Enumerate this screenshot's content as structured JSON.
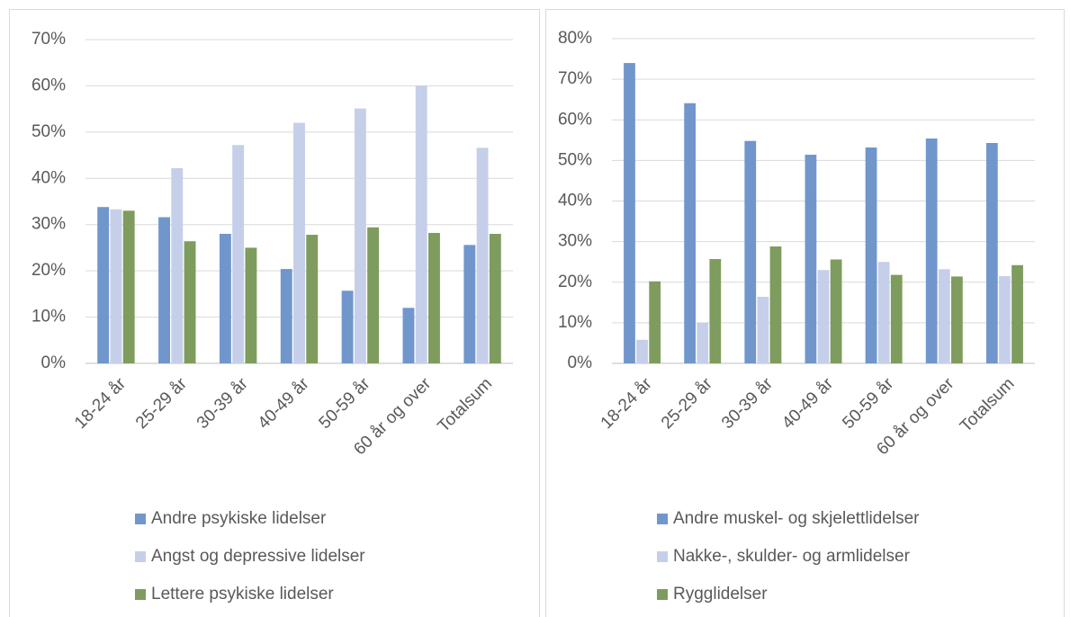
{
  "chart_data": [
    {
      "type": "bar",
      "categories": [
        "18-24 år",
        "25-29 år",
        "30-39 år",
        "40-49 år",
        "50-59 år",
        "60 år og over",
        "Totalsum"
      ],
      "series": [
        {
          "name": "Andre psykiske lidelser",
          "color": "#7096cc",
          "values": [
            33.8,
            31.6,
            28.0,
            20.4,
            15.7,
            12.0,
            25.6
          ]
        },
        {
          "name": "Angst og depressive lidelser",
          "color": "#c5cfe9",
          "values": [
            33.3,
            42.2,
            47.2,
            52.0,
            55.1,
            60.0,
            46.6
          ]
        },
        {
          "name": "Lettere psykiske lidelser",
          "color": "#7e9c5d",
          "values": [
            33.0,
            26.4,
            25.0,
            27.8,
            29.4,
            28.2,
            28.0
          ]
        }
      ],
      "ylim": [
        0,
        70
      ],
      "yticks": [
        {
          "value": 0,
          "label": "0%"
        },
        {
          "value": 10,
          "label": "10%"
        },
        {
          "value": 20,
          "label": "20%"
        },
        {
          "value": 30,
          "label": "30%"
        },
        {
          "value": 40,
          "label": "40%"
        },
        {
          "value": 50,
          "label": "50%"
        },
        {
          "value": 60,
          "label": "60%"
        },
        {
          "value": 70,
          "label": "70%"
        }
      ],
      "grid": true,
      "legend": "bottom"
    },
    {
      "type": "bar",
      "categories": [
        "18-24 år",
        "25-29 år",
        "30-39 år",
        "40-49 år",
        "50-59 år",
        "60 år og over",
        "Totalsum"
      ],
      "series": [
        {
          "name": "Andre muskel- og skjelettlidelser",
          "color": "#7096cc",
          "values": [
            74.0,
            64.1,
            54.8,
            51.4,
            53.2,
            55.4,
            54.3
          ]
        },
        {
          "name": "Nakke-, skulder- og armlidelser",
          "color": "#c5cfe9",
          "values": [
            5.8,
            10.0,
            16.4,
            23.0,
            25.0,
            23.2,
            21.5
          ]
        },
        {
          "name": "Rygglidelser",
          "color": "#7e9c5d",
          "values": [
            20.2,
            25.7,
            28.8,
            25.6,
            21.8,
            21.4,
            24.2
          ]
        }
      ],
      "ylim": [
        0,
        80
      ],
      "yticks": [
        {
          "value": 0,
          "label": "0%"
        },
        {
          "value": 10,
          "label": "10%"
        },
        {
          "value": 20,
          "label": "20%"
        },
        {
          "value": 30,
          "label": "30%"
        },
        {
          "value": 40,
          "label": "40%"
        },
        {
          "value": 50,
          "label": "50%"
        },
        {
          "value": 60,
          "label": "60%"
        },
        {
          "value": 70,
          "label": "70%"
        },
        {
          "value": 80,
          "label": "80%"
        }
      ],
      "grid": true,
      "legend": "bottom"
    }
  ]
}
